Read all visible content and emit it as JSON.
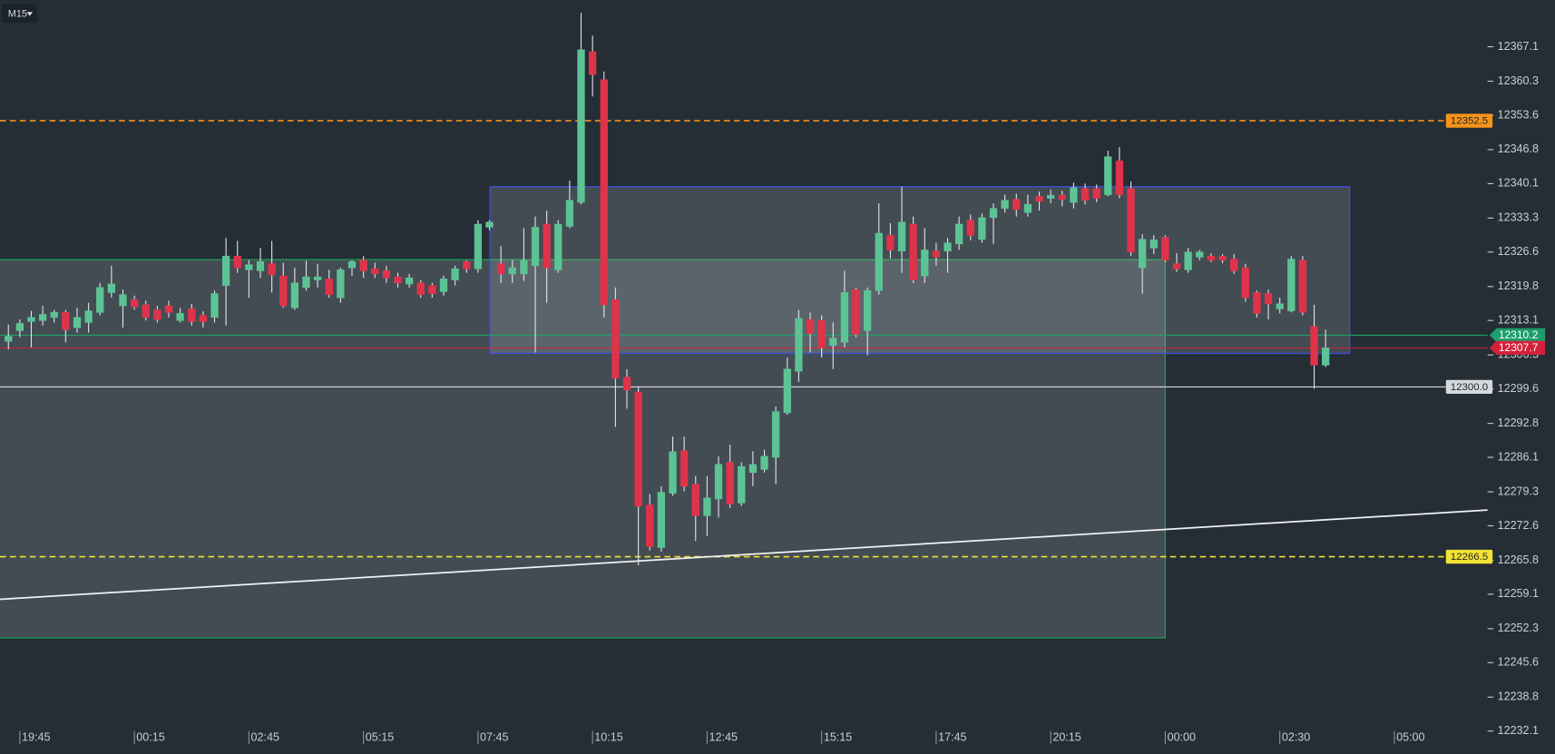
{
  "chart_data": {
    "type": "candlestick",
    "timeframe": "M15",
    "categories": [
      null,
      "19:45",
      null,
      null,
      null,
      null,
      null,
      null,
      null,
      null,
      null,
      "00:15",
      null,
      null,
      null,
      null,
      null,
      null,
      null,
      null,
      null,
      "02:45",
      null,
      null,
      null,
      null,
      null,
      null,
      null,
      null,
      null,
      "05:15",
      null,
      null,
      null,
      null,
      null,
      null,
      null,
      null,
      null,
      "07:45",
      null,
      null,
      null,
      null,
      null,
      null,
      null,
      null,
      null,
      "10:15",
      null,
      null,
      null,
      null,
      null,
      null,
      null,
      null,
      null,
      "12:45",
      null,
      null,
      null,
      null,
      null,
      null,
      null,
      null,
      null,
      "15:15",
      null,
      null,
      null,
      null,
      null,
      null,
      null,
      null,
      null,
      "17:45",
      null,
      null,
      null,
      null,
      null,
      null,
      null,
      null,
      null,
      "20:15",
      null,
      null,
      null,
      null,
      null,
      null,
      null,
      null,
      null,
      "00:00",
      null,
      null,
      null,
      null,
      null,
      null,
      null,
      null,
      null,
      "02:30",
      null,
      null,
      null,
      null,
      null,
      null,
      null,
      null,
      null,
      "05:00"
    ],
    "open": [
      12309.0,
      12311.1,
      12312.9,
      12313.1,
      12313.7,
      12314.7,
      12311.7,
      12312.7,
      12314.7,
      12318.6,
      12316.0,
      12317.2,
      12316.2,
      12315.2,
      12316.0,
      12313.1,
      12315.4,
      12314.1,
      12313.7,
      12320.0,
      12325.8,
      12323.1,
      12322.9,
      12324.3,
      12321.9,
      12315.6,
      12319.6,
      12321.1,
      12321.3,
      12317.6,
      12323.5,
      12325.0,
      12323.3,
      12322.9,
      12321.7,
      12320.3,
      12320.5,
      12320.0,
      12318.8,
      12321.1,
      12324.7,
      12323.3,
      12331.5,
      12324.3,
      12322.3,
      12322.3,
      12323.9,
      12332.1,
      12323.1,
      12331.7,
      12336.4,
      12366.1,
      12360.6,
      12317.2,
      12301.9,
      12299.0,
      12276.7,
      12268.3,
      12279.0,
      12287.4,
      12280.8,
      12274.6,
      12277.9,
      12285.1,
      12277.1,
      12283.1,
      12283.7,
      12286.1,
      12294.9,
      12303.1,
      12313.3,
      12313.1,
      12308.2,
      12308.8,
      12319.2,
      12311.1,
      12319.0,
      12329.9,
      12326.8,
      12332.1,
      12321.9,
      12326.8,
      12326.8,
      12328.2,
      12332.9,
      12329.1,
      12333.4,
      12335.2,
      12337.0,
      12334.4,
      12337.6,
      12337.2,
      12337.8,
      12336.4,
      12339.1,
      12339.1,
      12337.9,
      12344.6,
      12339.1,
      12323.5,
      12327.4,
      12329.5,
      12324.3,
      12323.1,
      12325.6,
      12325.8,
      12325.8,
      12325.2,
      12323.5,
      12318.6,
      12318.4,
      12315.4,
      12315.0,
      12325.0,
      12311.9,
      12304.3,
      null,
      null,
      null,
      null,
      null,
      null
    ],
    "high": [
      12312.3,
      12313.3,
      12315.0,
      12316.0,
      12315.2,
      12315.2,
      12315.6,
      12316.6,
      12320.5,
      12323.9,
      12319.2,
      12318.0,
      12317.0,
      12316.0,
      12317.0,
      12315.6,
      12316.4,
      12314.9,
      12319.0,
      12329.4,
      12328.8,
      12325.0,
      12327.4,
      12328.8,
      12324.5,
      12323.5,
      12324.9,
      12324.3,
      12323.1,
      12323.5,
      12325.0,
      12325.8,
      12324.5,
      12323.9,
      12322.5,
      12322.3,
      12321.1,
      12320.5,
      12321.9,
      12323.9,
      12325.0,
      12332.9,
      12332.9,
      12327.8,
      12325.0,
      12331.3,
      12333.6,
      12334.8,
      12332.9,
      12340.7,
      12373.8,
      12369.3,
      12362.2,
      12319.6,
      12303.5,
      12300.0,
      12278.9,
      12280.4,
      12290.2,
      12290.2,
      12282.4,
      12282.4,
      12286.3,
      12288.6,
      12285.1,
      12287.3,
      12287.6,
      12296.1,
      12305.8,
      12315.2,
      12314.7,
      12314.1,
      12312.7,
      12322.9,
      12319.6,
      12319.6,
      12336.2,
      12332.3,
      12339.5,
      12333.6,
      12331.3,
      12328.4,
      12329.4,
      12333.6,
      12334.0,
      12334.2,
      12336.2,
      12337.9,
      12338.1,
      12337.9,
      12338.5,
      12338.9,
      12338.7,
      12340.3,
      12340.1,
      12339.9,
      12346.6,
      12347.3,
      12340.5,
      12330.1,
      12329.9,
      12329.9,
      12326.4,
      12327.4,
      12327.0,
      12326.4,
      12326.2,
      12326.2,
      12324.3,
      12319.0,
      12319.2,
      12317.6,
      12325.8,
      12325.8,
      12316.2,
      12311.3,
      null,
      null,
      null,
      null,
      null,
      null
    ],
    "low": [
      12307.4,
      12309.8,
      12307.8,
      12312.1,
      12312.7,
      12308.8,
      12310.7,
      12310.7,
      12314.1,
      12317.6,
      12311.7,
      12315.2,
      12313.1,
      12312.7,
      12313.7,
      12312.7,
      12312.1,
      12311.7,
      12312.7,
      12312.1,
      12322.5,
      12317.6,
      12321.5,
      12318.6,
      12315.6,
      12315.2,
      12319.0,
      12319.6,
      12317.6,
      12316.6,
      12321.9,
      12321.5,
      12321.5,
      12320.5,
      12319.6,
      12319.6,
      12317.6,
      12317.6,
      12318.0,
      12320.0,
      12322.5,
      12322.5,
      12330.9,
      12320.5,
      12320.5,
      12320.9,
      12306.8,
      12316.6,
      12322.5,
      12331.3,
      12336.0,
      12357.3,
      12313.7,
      12292.1,
      12295.7,
      12264.8,
      12267.7,
      12267.5,
      12278.5,
      12279.4,
      12269.6,
      12270.6,
      12274.2,
      12276.1,
      12276.5,
      12280.4,
      12283.1,
      12280.8,
      12294.5,
      12301.0,
      12306.8,
      12305.8,
      12303.5,
      12307.8,
      12309.8,
      12306.2,
      12318.2,
      12325.4,
      12322.5,
      12320.5,
      12320.5,
      12323.9,
      12322.5,
      12327.0,
      12328.9,
      12328.4,
      12328.2,
      12334.4,
      12333.6,
      12333.6,
      12334.8,
      12336.2,
      12335.6,
      12335.2,
      12336.0,
      12336.4,
      12337.6,
      12337.2,
      12325.8,
      12318.4,
      12326.2,
      12324.6,
      12322.7,
      12322.5,
      12325.0,
      12324.6,
      12324.4,
      12322.3,
      12316.8,
      12313.7,
      12313.3,
      12314.5,
      12314.7,
      12314.1,
      12299.6,
      12303.9,
      null,
      null,
      null,
      null,
      null,
      null
    ],
    "close": [
      12310.0,
      12312.5,
      12313.7,
      12314.3,
      12314.7,
      12311.3,
      12313.7,
      12315.0,
      12319.6,
      12320.3,
      12318.2,
      12315.8,
      12313.7,
      12313.3,
      12314.7,
      12314.5,
      12312.9,
      12312.9,
      12318.4,
      12325.8,
      12323.5,
      12324.1,
      12324.7,
      12322.1,
      12316.0,
      12320.5,
      12321.7,
      12321.7,
      12318.2,
      12323.1,
      12324.7,
      12322.9,
      12322.3,
      12321.5,
      12320.5,
      12321.5,
      12318.2,
      12318.4,
      12321.3,
      12323.3,
      12323.3,
      12332.1,
      12332.5,
      12322.3,
      12323.5,
      12324.9,
      12331.5,
      12323.5,
      12332.1,
      12336.8,
      12366.5,
      12361.6,
      12316.2,
      12301.7,
      12299.4,
      12276.5,
      12268.5,
      12279.2,
      12287.2,
      12280.4,
      12274.6,
      12278.1,
      12284.7,
      12276.9,
      12284.3,
      12284.7,
      12286.3,
      12295.1,
      12303.5,
      12313.5,
      12310.5,
      12307.8,
      12309.6,
      12318.6,
      12310.3,
      12319.0,
      12330.3,
      12327.0,
      12332.5,
      12321.1,
      12327.0,
      12325.6,
      12328.4,
      12332.1,
      12329.9,
      12333.4,
      12335.2,
      12336.8,
      12335.0,
      12336.0,
      12336.6,
      12337.8,
      12337.0,
      12339.3,
      12336.8,
      12337.2,
      12345.4,
      12337.9,
      12326.6,
      12329.1,
      12329.0,
      12325.0,
      12323.3,
      12326.6,
      12326.6,
      12325.0,
      12325.0,
      12322.9,
      12317.6,
      12314.5,
      12316.4,
      12316.4,
      12325.2,
      12314.7,
      12304.3,
      12307.7,
      null,
      null,
      null,
      null,
      null,
      null
    ],
    "up_color": "#5cc394",
    "down_color": "#e0334a",
    "wick_color": "#e4e6e8",
    "ylim": [
      12227.6,
      12376.3
    ],
    "yticks": [
      12367.1,
      12360.3,
      12353.6,
      12346.8,
      12340.1,
      12333.3,
      12326.6,
      12319.8,
      12313.1,
      12306.3,
      12299.6,
      12292.8,
      12286.1,
      12279.3,
      12272.6,
      12265.8,
      12259.1,
      12252.3,
      12245.6,
      12238.8,
      12232.1
    ],
    "price_lines": [
      {
        "value": 12352.5,
        "color": "#f7931a",
        "style": "dashed",
        "marker": "box"
      },
      {
        "value": 12310.2,
        "color": "#1e9e6a",
        "style": "solid",
        "marker": "arrow"
      },
      {
        "value": 12307.7,
        "color": "#d4213a",
        "style": "solid",
        "marker": "arrow"
      },
      {
        "value": {
          "value": 12300,
          "label": "12300.0"
        },
        "color": "#d6d9dc",
        "style": "solid",
        "marker": "box"
      },
      {
        "value": 12266.5,
        "color": "#f2e233",
        "style": "dashed",
        "marker": "box"
      }
    ],
    "rectangles": [
      {
        "top": 12325.1,
        "bottom": 12250.5,
        "color": "#1f9d55"
      },
      {
        "top": 12339.5,
        "bottom": 12306.6,
        "color": "#3d4fd6"
      }
    ],
    "trendline": {
      "start": 12258.1,
      "end": 12275.7,
      "color": "#f2f2f2"
    }
  }
}
